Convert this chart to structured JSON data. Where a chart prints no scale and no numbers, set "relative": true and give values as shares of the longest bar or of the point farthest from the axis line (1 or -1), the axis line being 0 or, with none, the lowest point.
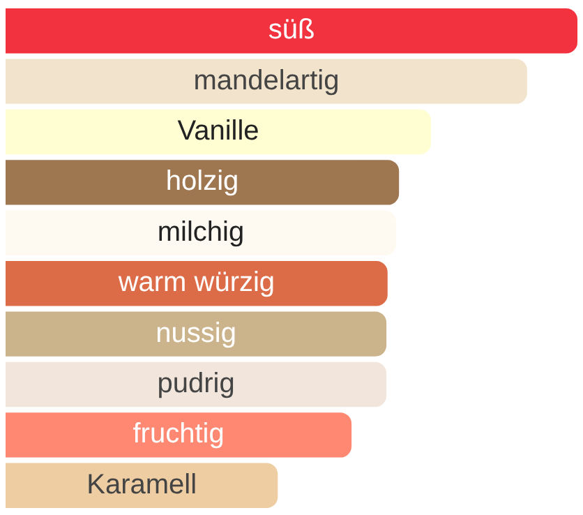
{
  "chart_data": {
    "type": "bar",
    "orientation": "horizontal",
    "relative": true,
    "categories": [
      "süß",
      "mandelartig",
      "Vanille",
      "holzig",
      "milchig",
      "warm würzig",
      "nussig",
      "pudrig",
      "fruchtig",
      "Karamell"
    ],
    "values": [
      1,
      0.912,
      0.744,
      0.688,
      0.683,
      0.668,
      0.666,
      0.666,
      0.605,
      0.476
    ],
    "colors": [
      "#f2333f",
      "#f2e4cc",
      "#fefed2",
      "#9e7650",
      "#fefaf2",
      "#dc6c48",
      "#cbb38c",
      "#f2e6dc",
      "#fe8872",
      "#eecda2"
    ]
  }
}
